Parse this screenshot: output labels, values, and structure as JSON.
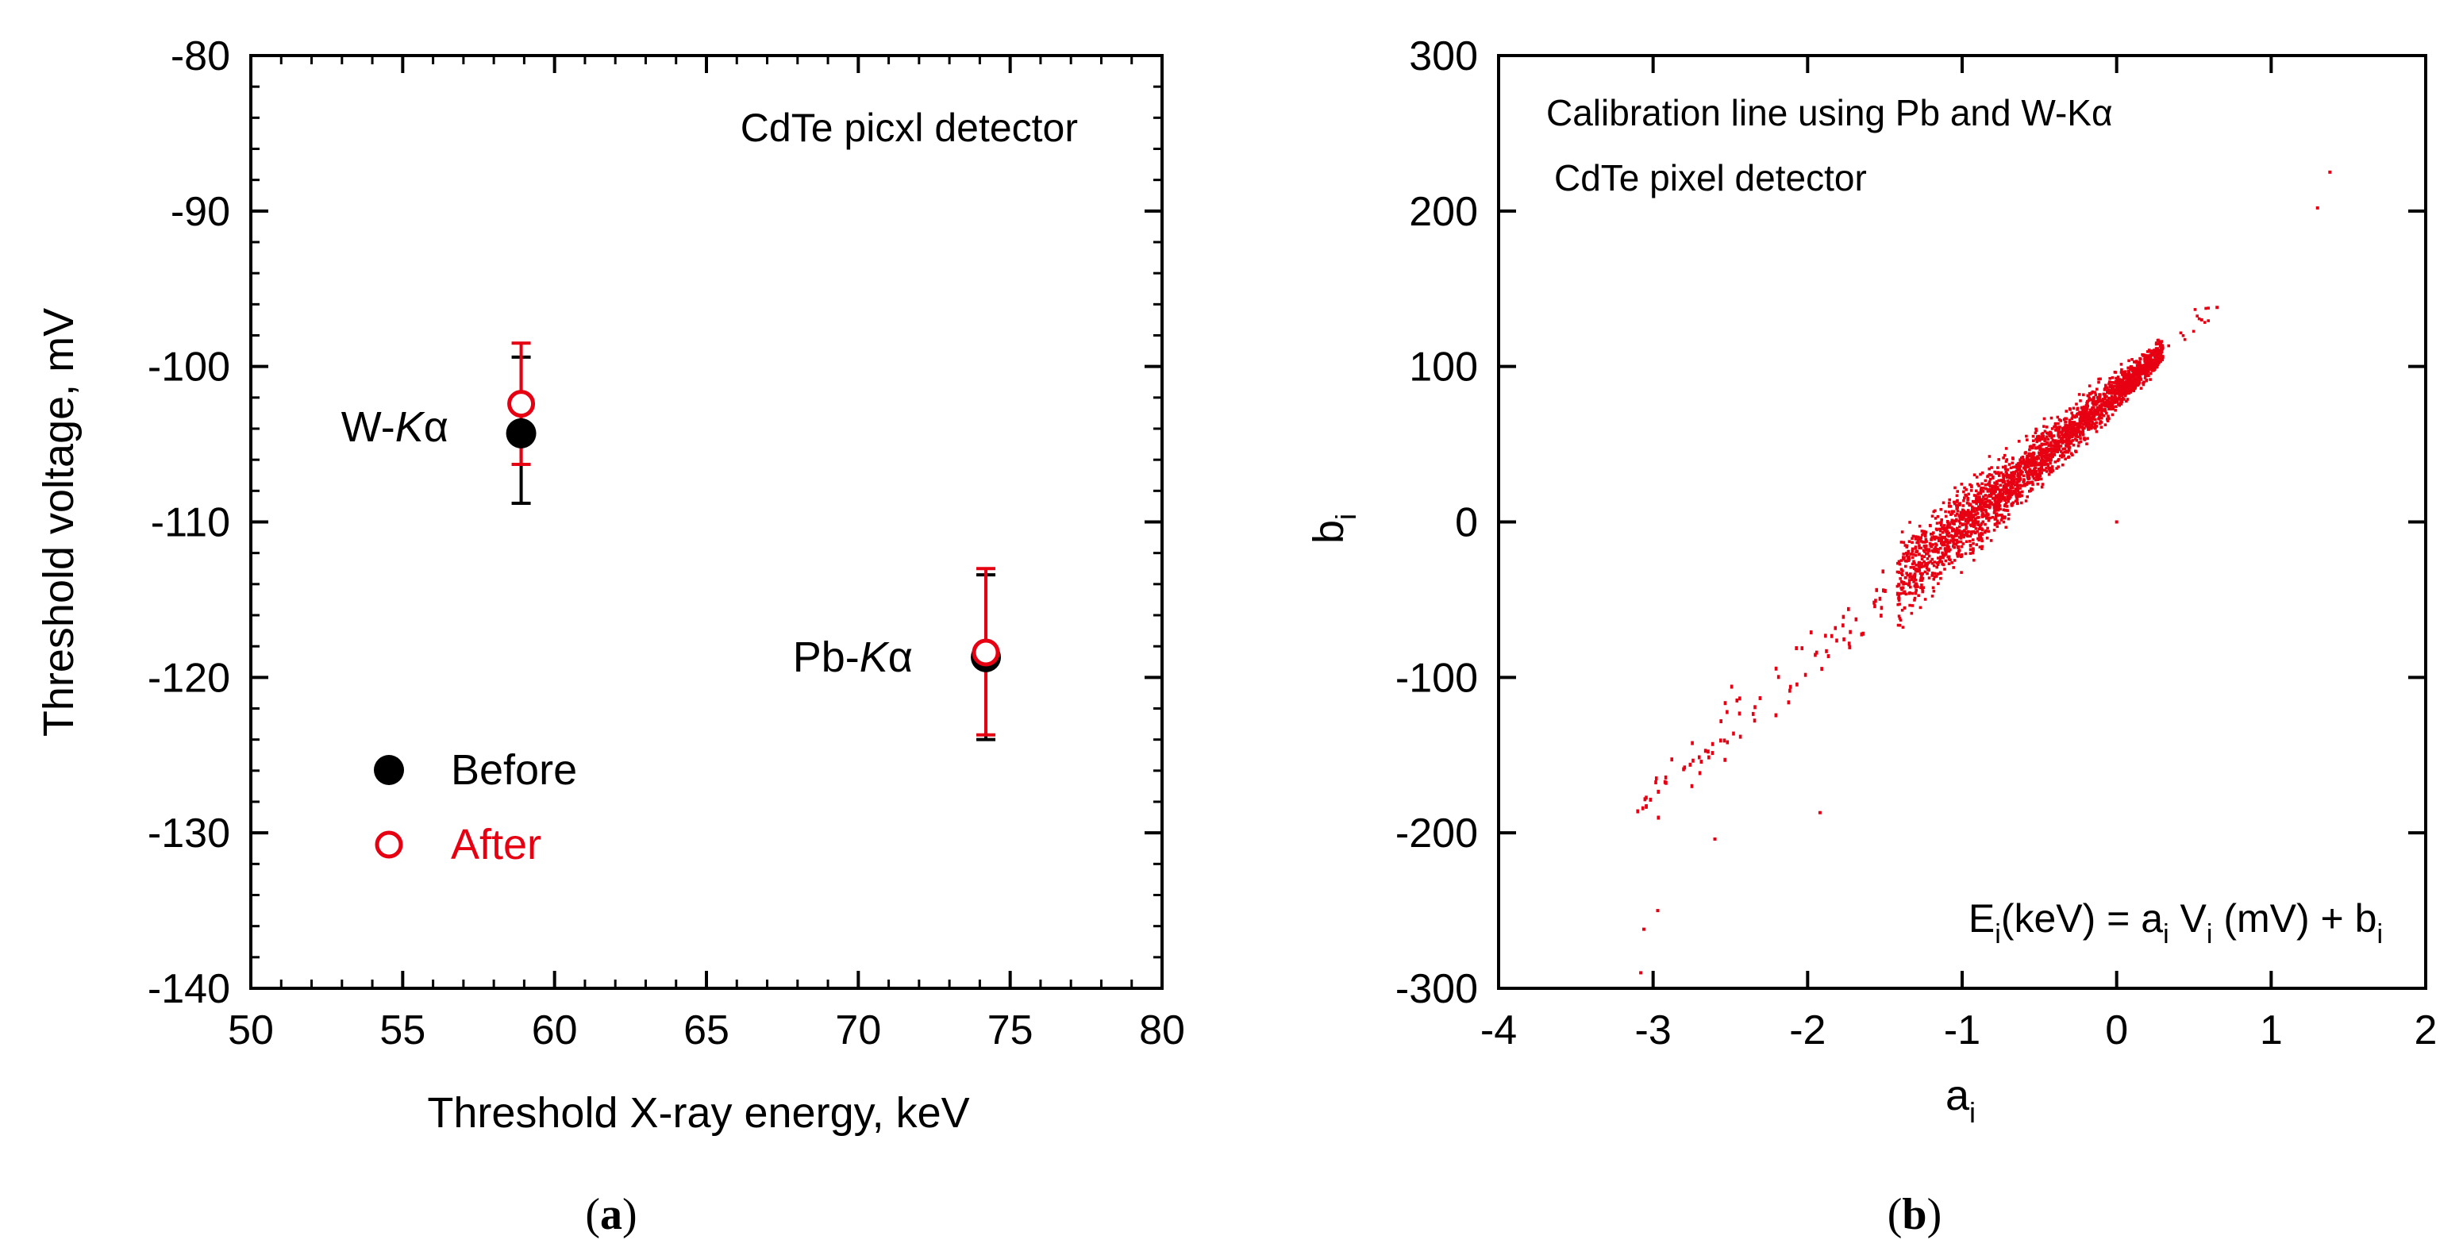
{
  "chart_data": [
    {
      "type": "scatter",
      "panel_label": "a",
      "annotation": "CdTe picxl detector",
      "xlabel": "Threshold X-ray energy, keV",
      "ylabel": "Threshold voltage, mV",
      "xlim": [
        50,
        80
      ],
      "ylim": [
        -140,
        -80
      ],
      "xticks": [
        50,
        55,
        60,
        65,
        70,
        75,
        80
      ],
      "yticks": [
        -140,
        -130,
        -120,
        -110,
        -100,
        -90,
        -80
      ],
      "grid": false,
      "legend_position": "lower-left",
      "series": [
        {
          "name": "Before",
          "color": "#000000",
          "marker": "filled-circle",
          "points": [
            {
              "x": 58.9,
              "y": -104.3,
              "err_low": -108.8,
              "err_high": -99.4
            },
            {
              "x": 74.2,
              "y": -118.7,
              "err_low": -124.0,
              "err_high": -113.4
            }
          ]
        },
        {
          "name": "After",
          "color": "#e60012",
          "marker": "open-circle",
          "points": [
            {
              "x": 58.9,
              "y": -102.4,
              "err_low": -106.3,
              "err_high": -98.5
            },
            {
              "x": 74.2,
              "y": -118.4,
              "err_low": -123.7,
              "err_high": -113.0
            }
          ]
        }
      ],
      "point_labels": [
        {
          "prefix": "W-",
          "italic": "K",
          "suffix": "α",
          "x": 58.9,
          "y": -104.3
        },
        {
          "prefix": "Pb-",
          "italic": "K",
          "suffix": "α",
          "x": 74.2,
          "y": -118.7
        }
      ]
    },
    {
      "type": "scatter",
      "panel_label": "b",
      "annotations": [
        "Calibration line using Pb and W-Kα",
        "CdTe pixel detector"
      ],
      "formula": {
        "E": "E",
        "i": "i",
        "part1": "(keV) = a",
        "part2": " V",
        "part3": " (mV) + b"
      },
      "xlabel": {
        "base": "a",
        "sub": "i"
      },
      "ylabel": {
        "base": "b",
        "sub": "i"
      },
      "xlim": [
        -4,
        2
      ],
      "ylim": [
        -300,
        300
      ],
      "xticks": [
        -4,
        -3,
        -2,
        -1,
        0,
        1,
        2
      ],
      "yticks": [
        -300,
        -200,
        -100,
        0,
        100,
        200,
        300
      ],
      "grid": false,
      "color": "#e60012",
      "marker": "dot",
      "relation": "b ≈ 87·a + 84 (approx.)",
      "outliers": [
        {
          "x": 1.38,
          "y": 225
        },
        {
          "x": 1.3,
          "y": 202
        },
        {
          "x": 0.65,
          "y": 138
        },
        {
          "x": 0.55,
          "y": 130
        },
        {
          "x": 0.0,
          "y": 0
        },
        {
          "x": -3.08,
          "y": -290
        },
        {
          "x": -3.06,
          "y": -262
        },
        {
          "x": -2.97,
          "y": -250
        },
        {
          "x": -2.6,
          "y": -204
        },
        {
          "x": -1.92,
          "y": -187
        }
      ]
    }
  ]
}
